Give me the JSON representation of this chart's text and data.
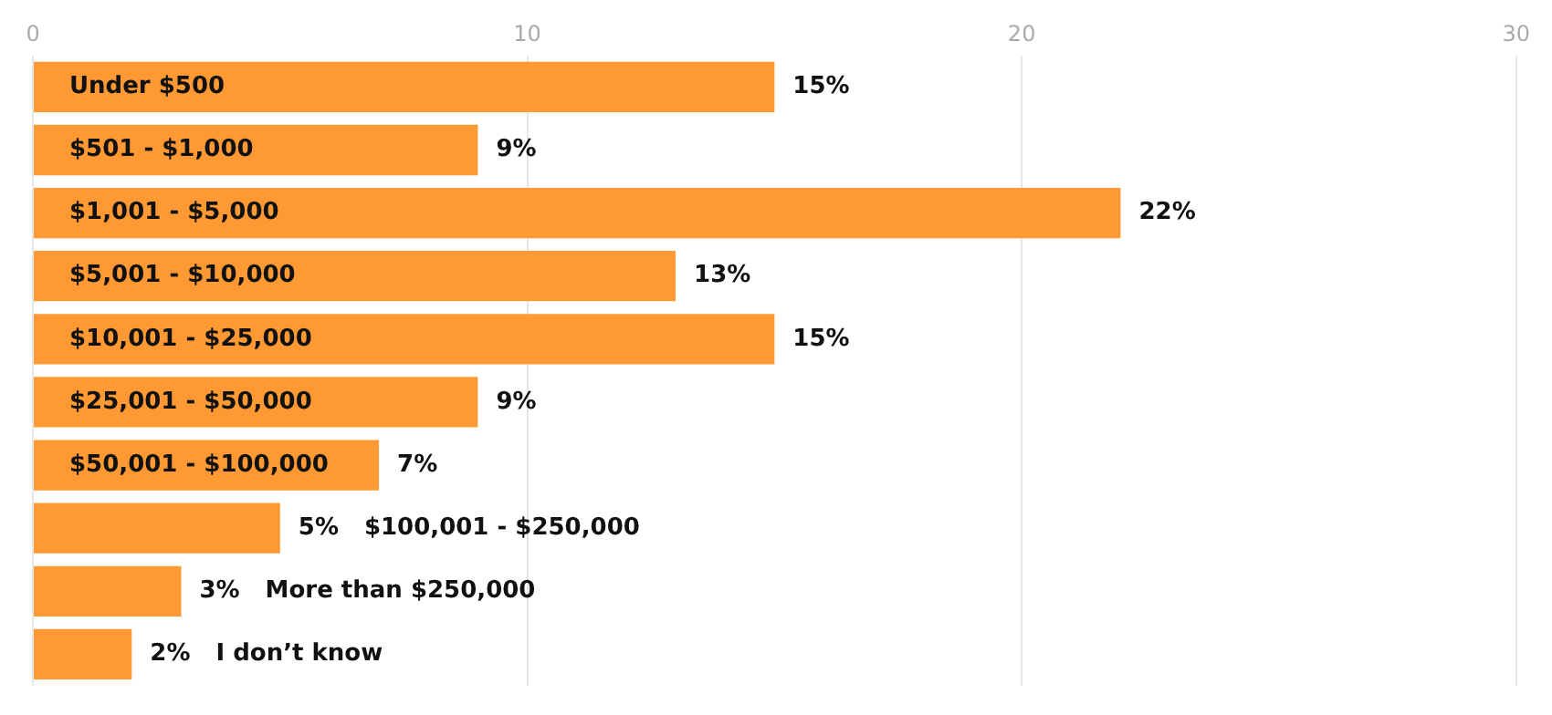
{
  "chart_data": {
    "type": "bar",
    "orientation": "horizontal",
    "categories": [
      "Under $500",
      "$501 - $1,000",
      "$1,001 - $5,000",
      "$5,001 - $10,000",
      "$10,001 - $25,000",
      "$25,001 - $50,000",
      "$50,001 - $100,000",
      "$100,001 - $250,000",
      "More than $250,000",
      "I don’t know"
    ],
    "values": [
      15,
      9,
      22,
      13,
      15,
      9,
      7,
      5,
      3,
      2
    ],
    "value_labels": [
      "15%",
      "9%",
      "22%",
      "13%",
      "15%",
      "9%",
      "7%",
      "5%",
      "3%",
      "2%"
    ],
    "color": "#ff9933",
    "xlim": [
      0,
      30
    ],
    "xticks": [
      0,
      10,
      20,
      30
    ],
    "grid": "x"
  }
}
